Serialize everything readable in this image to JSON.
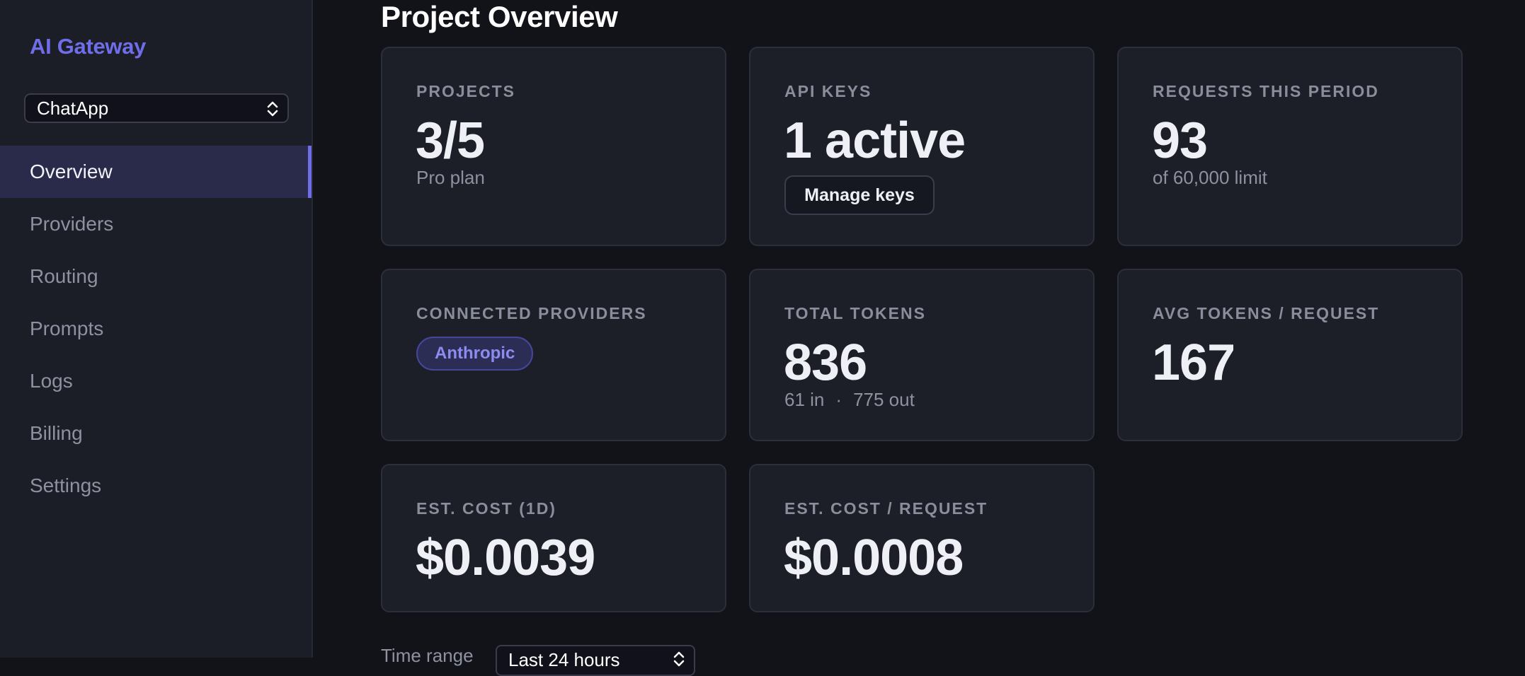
{
  "sidebar": {
    "brand": "AI Gateway",
    "project_select": {
      "value": "ChatApp"
    },
    "nav": [
      {
        "label": "Overview",
        "active": true
      },
      {
        "label": "Providers",
        "active": false
      },
      {
        "label": "Routing",
        "active": false
      },
      {
        "label": "Prompts",
        "active": false
      },
      {
        "label": "Logs",
        "active": false
      },
      {
        "label": "Billing",
        "active": false
      },
      {
        "label": "Settings",
        "active": false
      }
    ]
  },
  "main": {
    "title": "Project Overview",
    "cards": {
      "projects": {
        "label": "PROJECTS",
        "value": "3/5",
        "sub": "Pro plan"
      },
      "api_keys": {
        "label": "API KEYS",
        "value": "1 active",
        "button": "Manage keys"
      },
      "requests": {
        "label": "REQUESTS THIS PERIOD",
        "value": "93",
        "sub": "of 60,000 limit"
      },
      "providers": {
        "label": "CONNECTED PROVIDERS",
        "pills": [
          "Anthropic"
        ]
      },
      "tokens": {
        "label": "TOTAL TOKENS",
        "value": "836",
        "sub_in": "61 in",
        "sub_sep": "·",
        "sub_out": "775 out"
      },
      "avg_tokens": {
        "label": "AVG TOKENS / REQUEST",
        "value": "167"
      },
      "cost": {
        "label": "EST. COST (1D)",
        "value": "$0.0039"
      },
      "cost_per_request": {
        "label": "EST. COST / REQUEST",
        "value": "$0.0008"
      }
    },
    "time_range": {
      "label": "Time range",
      "value": "Last 24 hours"
    }
  },
  "colors": {
    "accent": "#6f6ee8",
    "background": "#121319",
    "card": "#1c1e28"
  }
}
